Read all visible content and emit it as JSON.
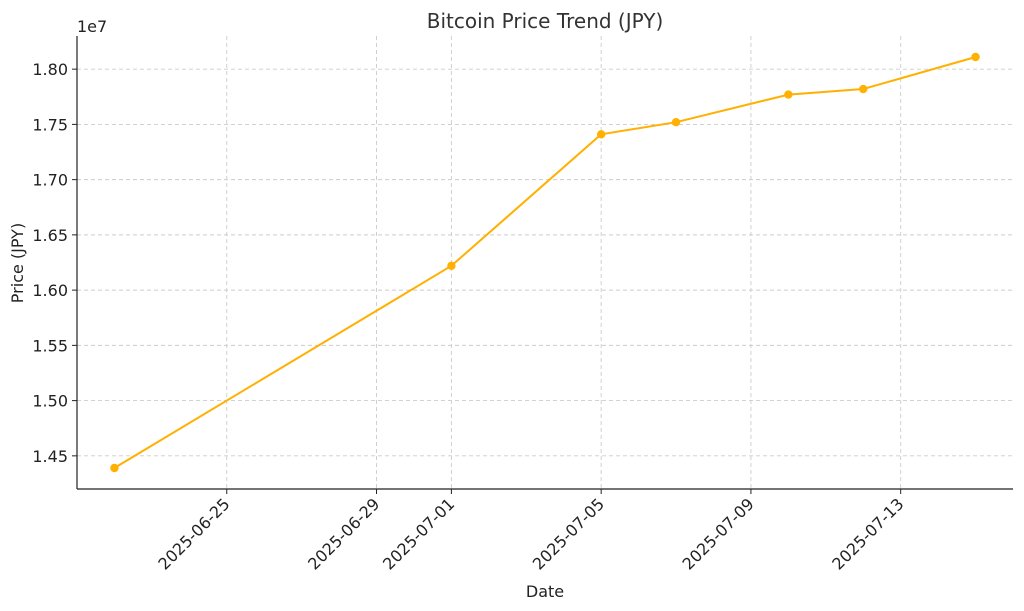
{
  "chart_data": {
    "type": "line",
    "title": "Bitcoin Price Trend (JPY)",
    "xlabel": "Date",
    "ylabel": "Price (JPY)",
    "y_offset_label": "1e7",
    "grid": true,
    "color": "#FFB000",
    "x": [
      "2025-06-22",
      "2025-07-01",
      "2025-07-05",
      "2025-07-07",
      "2025-07-10",
      "2025-07-12",
      "2025-07-15"
    ],
    "y": [
      14390000,
      16220000,
      17410000,
      17520000,
      17770000,
      17820000,
      18110000
    ],
    "x_ticks": [
      "2025-06-25",
      "2025-06-29",
      "2025-07-01",
      "2025-07-05",
      "2025-07-09",
      "2025-07-13"
    ],
    "y_ticks": [
      1.45,
      1.5,
      1.55,
      1.6,
      1.65,
      1.7,
      1.75,
      1.8
    ],
    "y_tick_labels": [
      "1.45",
      "1.50",
      "1.55",
      "1.60",
      "1.65",
      "1.70",
      "1.75",
      "1.80"
    ],
    "xlim": [
      "2025-06-21",
      "2025-07-16"
    ],
    "ylim": [
      14200000,
      18300000
    ]
  }
}
